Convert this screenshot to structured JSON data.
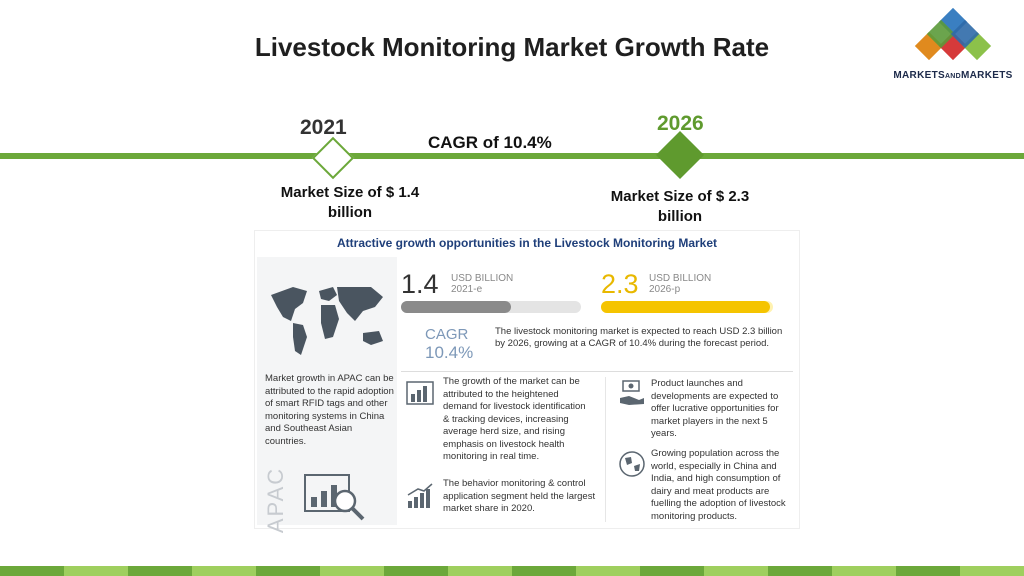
{
  "title": "Livestock Monitoring Market Growth Rate",
  "logo": {
    "text_main": "MARKETS",
    "text_and": "AND",
    "text_end": "MARKETS"
  },
  "timeline": {
    "start_year": "2021",
    "end_year": "2026",
    "cagr": "CAGR of 10.4%",
    "start_size": "Market Size of $ 1.4 billion",
    "end_size": "Market Size of $ 2.3 billion"
  },
  "infographic": {
    "title": "Attractive growth opportunities in the Livestock Monitoring Market",
    "value_2021": "1.4",
    "unit_2021": "USD BILLION",
    "year_2021": "2021-e",
    "value_2026": "2.3",
    "unit_2026": "USD BILLION",
    "year_2026": "2026-p",
    "bar_2021_fraction": 0.61,
    "bar_2026_fraction": 0.98,
    "cagr_label": "CAGR",
    "cagr_value": "10.4%",
    "cagr_text": "The livestock monitoring market is expected to reach USD 2.3 billion by 2026, growing at a CAGR of 10.4% during the forecast period.",
    "apac_text": "Market growth in APAC can be attributed to the rapid adoption of smart RFID tags and other monitoring systems in China and Southeast Asian countries.",
    "apac_label": "APAC",
    "growth_text": "The growth of the market can be attributed to the heightened demand for livestock identification & tracking devices, increasing average herd size, and rising emphasis on livestock health monitoring in real time.",
    "product_text": "Product launches and developments are expected to offer lucrative opportunities for market players in the next 5 years.",
    "globe_text": "Growing population across the world, especially in China and India, and high consumption of dairy and meat products are fuelling the adoption of livestock monitoring products.",
    "behavior_text": "The behavior monitoring & control application segment held the largest market share in 2020."
  },
  "colors": {
    "accent_green": "#6ca83a",
    "dark_green": "#5f9a2e",
    "yellow": "#f5c400",
    "grey": "#8a8a8a"
  }
}
